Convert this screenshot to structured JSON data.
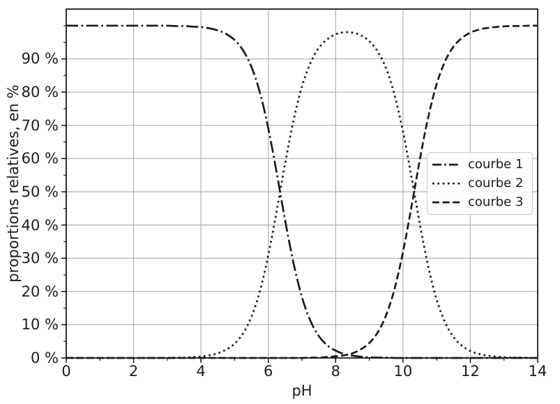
{
  "chart_data": {
    "type": "line",
    "title": "",
    "xlabel": "pH",
    "ylabel": "proportions relatives, en %",
    "xlim": [
      0,
      14
    ],
    "ylim": [
      0,
      105
    ],
    "grid": true,
    "x_major_ticks": [
      0,
      2,
      4,
      6,
      8,
      10,
      12,
      14
    ],
    "x_tick_labels": [
      "0",
      "2",
      "4",
      "6",
      "8",
      "10",
      "12",
      "14"
    ],
    "x_minor_ticks": [
      1,
      3,
      5,
      7,
      9,
      11,
      13
    ],
    "y_major_ticks": [
      0,
      10,
      20,
      30,
      40,
      50,
      60,
      70,
      80,
      90
    ],
    "y_tick_labels": [
      "0 %",
      "10 %",
      "20 %",
      "30 %",
      "40 %",
      "50 %",
      "60 %",
      "70 %",
      "80 %",
      "90 %"
    ],
    "y_minor_ticks": [
      5,
      15,
      25,
      35,
      45,
      55,
      65,
      75,
      85,
      95,
      100
    ],
    "x": [
      0,
      0.25,
      0.5,
      0.75,
      1,
      1.25,
      1.5,
      1.75,
      2,
      2.25,
      2.5,
      2.75,
      3,
      3.25,
      3.5,
      3.75,
      4,
      4.25,
      4.5,
      4.75,
      5,
      5.25,
      5.5,
      5.75,
      6,
      6.25,
      6.5,
      6.75,
      7,
      7.25,
      7.5,
      7.75,
      8,
      8.25,
      8.5,
      8.75,
      9,
      9.25,
      9.5,
      9.75,
      10,
      10.25,
      10.5,
      10.75,
      11,
      11.25,
      11.5,
      11.75,
      12,
      12.25,
      12.5,
      12.75,
      13,
      13.25,
      13.5,
      13.75,
      14
    ],
    "series": [
      {
        "name": "courbe 1",
        "linestyle": "dashdot",
        "values": [
          100,
          100,
          100,
          100,
          100,
          100,
          100,
          100,
          100,
          100,
          100,
          100,
          100,
          99.9,
          99.9,
          99.7,
          99.6,
          99.2,
          98.6,
          97.5,
          95.7,
          92.6,
          87.6,
          79.9,
          69.1,
          55.7,
          41.4,
          28.5,
          18.3,
          11.2,
          6.6,
          3.8,
          2.2,
          1.2,
          0.7,
          0.4,
          0.2,
          0.1,
          0.1,
          0,
          0,
          0,
          0,
          0,
          0,
          0,
          0,
          0,
          0,
          0,
          0,
          0,
          0,
          0,
          0,
          0,
          0
        ]
      },
      {
        "name": "courbe 2",
        "linestyle": "dotted",
        "values": [
          0,
          0,
          0,
          0,
          0,
          0,
          0,
          0,
          0,
          0,
          0,
          0,
          0,
          0.1,
          0.1,
          0.3,
          0.4,
          0.8,
          1.4,
          2.5,
          4.3,
          7.4,
          12.4,
          20.1,
          30.9,
          44.3,
          58.5,
          71.5,
          81.7,
          88.7,
          93.3,
          95.9,
          97.4,
          98,
          97.9,
          97.1,
          95.3,
          92.2,
          87.1,
          79.1,
          68.1,
          54.6,
          40.3,
          27.5,
          17.6,
          10.7,
          6.3,
          3.7,
          2.1,
          1.2,
          0.7,
          0.4,
          0.2,
          0.1,
          0.1,
          0,
          0
        ]
      },
      {
        "name": "courbe 3",
        "linestyle": "dashed",
        "values": [
          0,
          0,
          0,
          0,
          0,
          0,
          0,
          0,
          0,
          0,
          0,
          0,
          0,
          0,
          0,
          0,
          0,
          0,
          0,
          0,
          0,
          0,
          0,
          0,
          0,
          0,
          0,
          0,
          0,
          0.1,
          0.1,
          0.3,
          0.5,
          0.8,
          1.4,
          2.6,
          4.5,
          7.7,
          12.9,
          20.8,
          31.9,
          45.4,
          59.7,
          72.5,
          82.4,
          89.3,
          93.7,
          96.3,
          97.9,
          98.8,
          99.3,
          99.6,
          99.8,
          99.9,
          99.9,
          100,
          100
        ]
      }
    ],
    "legend": {
      "location": "center right",
      "entries": [
        "courbe 1",
        "courbe 2",
        "courbe 3"
      ]
    },
    "colors": {
      "line": "#1a1a1a",
      "grid": "#b0b0b0",
      "spine": "#000000",
      "text": "#1c1c1c",
      "background": "#ffffff",
      "legend_border": "#c9c9c9"
    }
  }
}
